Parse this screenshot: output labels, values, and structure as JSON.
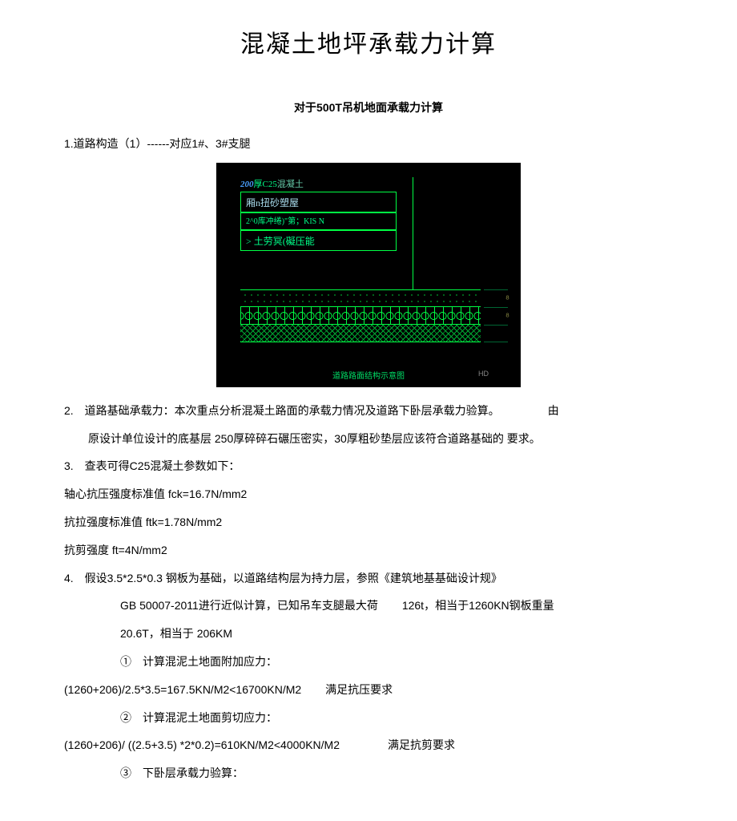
{
  "title": "混凝土地坪承载力计算",
  "subtitle": "对于500T吊机地面承载力计算",
  "sec1": "1.道路构造（1）------对应1#、3#支腿",
  "diagram": {
    "top_prefix": "200",
    "top_mid": "厚C25",
    "top_suffix": "混凝土",
    "box1": "厢n扭砂塑屋",
    "box2": "2^0库冲绻)\"第；KIS N",
    "box3": "> 土劳冥(礙压能",
    "bottom_caption": "道路路面结构示意图",
    "hd": "HD",
    "dim1": "8",
    "dim2": "8"
  },
  "sec2a": "2.　道路基础承载力：本次重点分析混凝土路面的承载力情况及道路下卧层承载力验算。",
  "sec2a_r": "由",
  "sec2b": "原设计单位设计的底基层 250厚碎碎石碾压密实，30厚粗砂垫层应该符合道路基础的 要求。",
  "sec3": "3.　查表可得C25混凝土参数如下：",
  "p_fck": "轴心抗压强度标准值 fck=16.7N/mm2",
  "p_ftk": "抗拉强度标准值 ftk=1.78N/mm2",
  "p_ft": "抗剪强度 ft=4N/mm2",
  "sec4a": "4.　假设3.5*2.5*0.3 钢板为基础，以道路结构层为持力层，参照《建筑地基基础设计规》",
  "sec4b_l": "GB 50007-2011进行近似计算，已知吊车支腿最大荷",
  "sec4b_r": "126t，相当于1260KN钢板重量",
  "sec4c": "20.6T，相当于 206KM",
  "calc1_h": "①　计算混泥土地面附加应力：",
  "calc1_eq": "(1260+206)/2.5*3.5=167.5KN/M2<16700KN/M2",
  "calc1_ok": "满足抗压要求",
  "calc2_h": "②　计算混泥土地面剪切应力：",
  "calc2_eq": "(1260+206)/ ((2.5+3.5) *2*0.2)=610KN/M2<4000KN/M2",
  "calc2_ok": "满足抗剪要求",
  "calc3_h": "③　下卧层承载力验算：",
  "colors": {
    "page_bg": "#ffffff",
    "text": "#000000",
    "cad_bg": "#000000",
    "cad_green": "#00ff44",
    "cad_text": "#00ff88",
    "cad_blue": "#4a9fff"
  }
}
